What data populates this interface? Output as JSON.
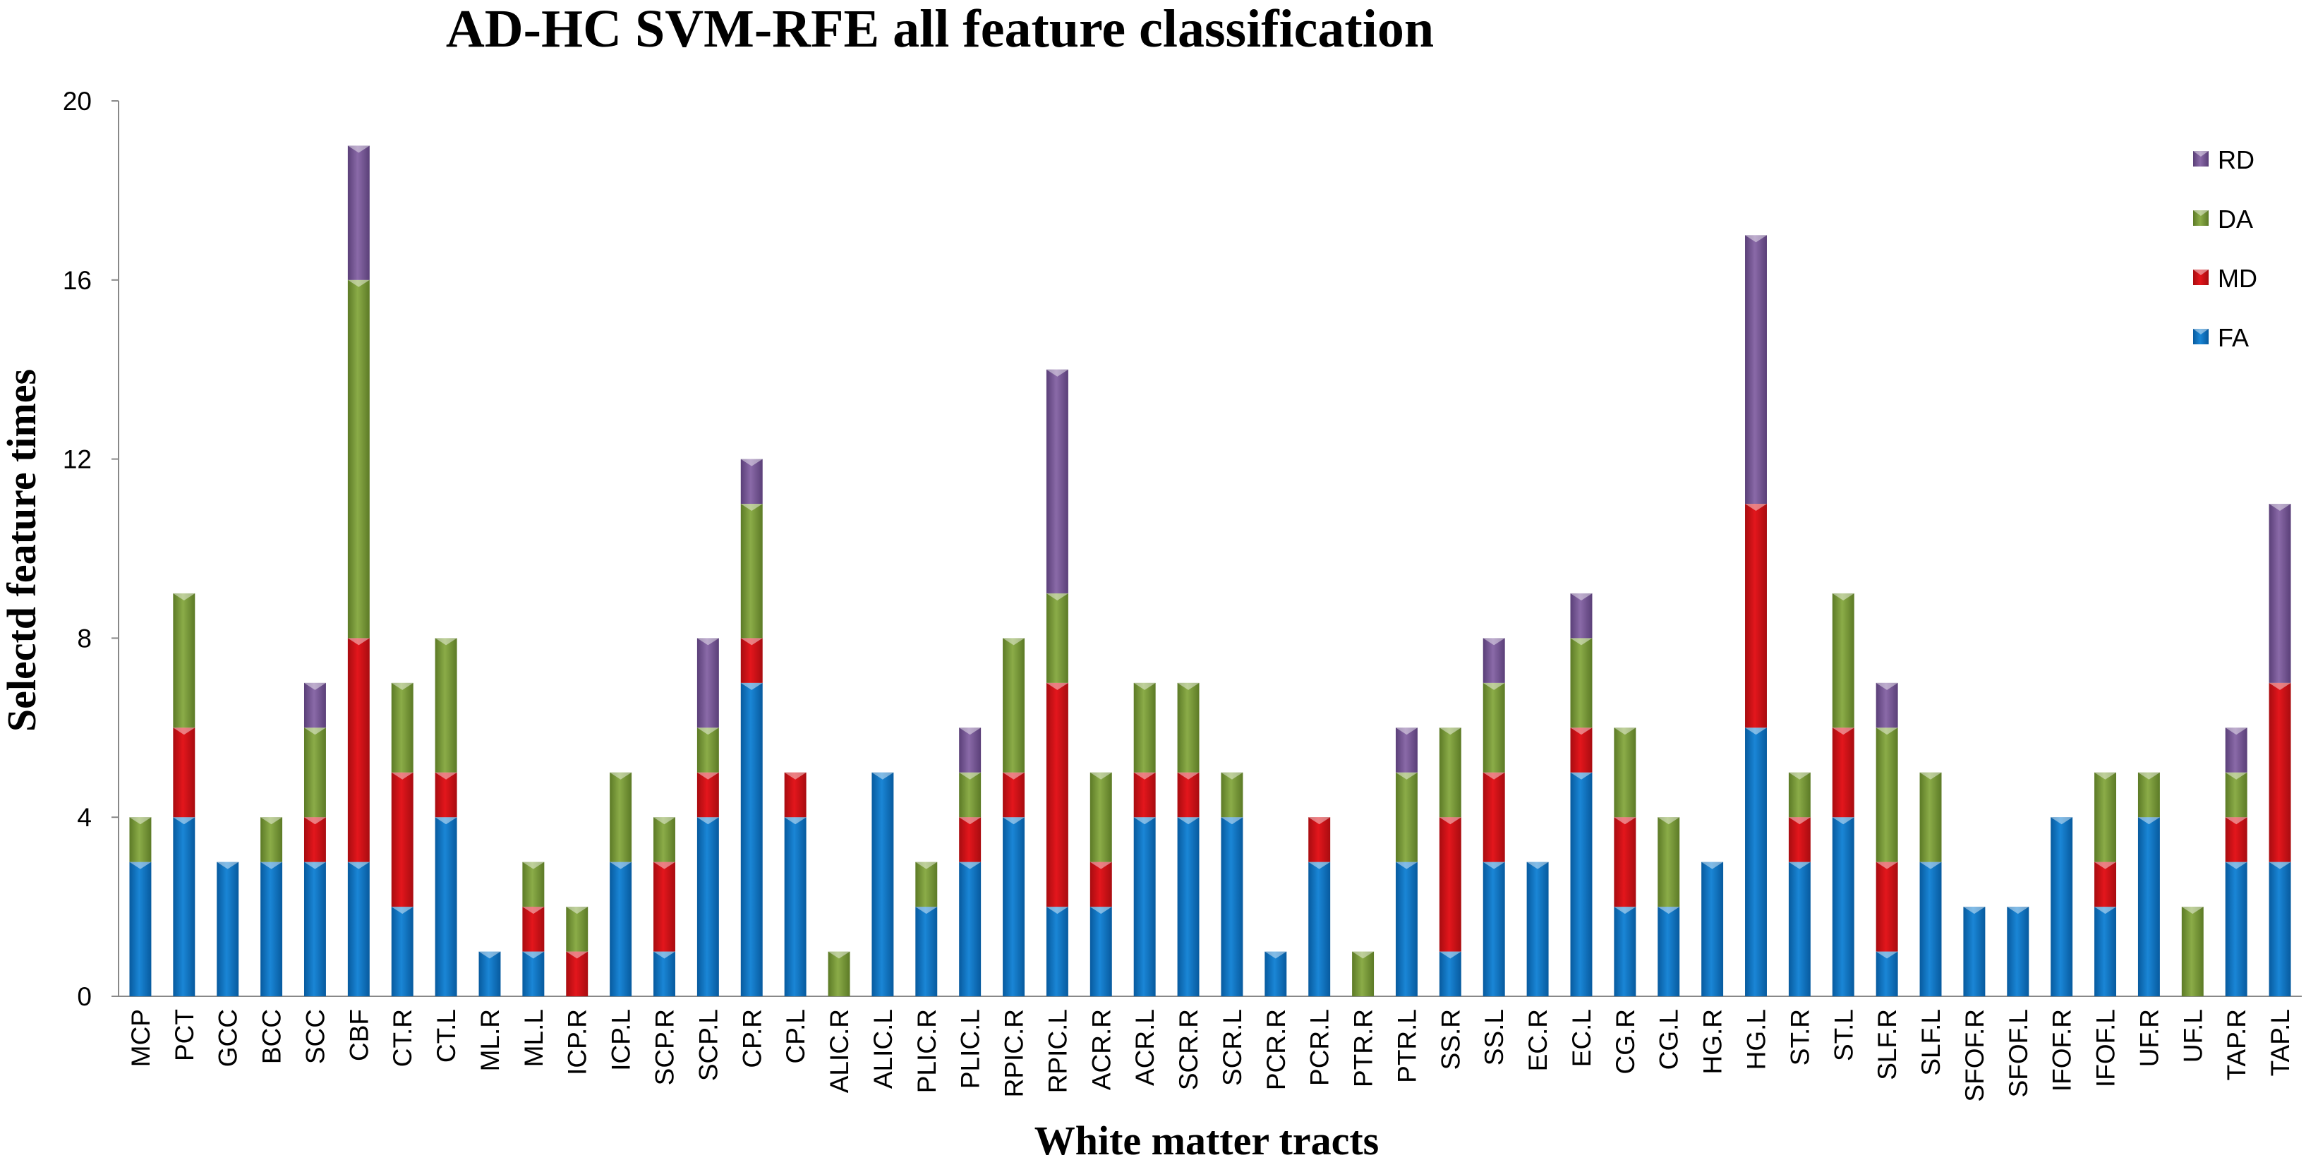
{
  "chart_data": {
    "type": "bar",
    "stacked": true,
    "title": "AD-HC SVM-RFE all feature classification",
    "xlabel": "White matter tracts",
    "ylabel": "Selectd feature times",
    "ylim": [
      0,
      20
    ],
    "yticks": [
      0,
      4,
      8,
      12,
      16,
      20
    ],
    "grid": false,
    "legend_position": "top-right",
    "categories": [
      "MCP",
      "PCT",
      "GCC",
      "BCC",
      "SCC",
      "CBF",
      "CT.R",
      "CT.L",
      "ML.R",
      "ML.L",
      "ICP.R",
      "ICP.L",
      "SCP.R",
      "SCP.L",
      "CP.R",
      "CP.L",
      "ALIC.R",
      "ALIC.L",
      "PLIC.R",
      "PLIC.L",
      "RPIC.R",
      "RPIC.L",
      "ACR.R",
      "ACR.L",
      "SCR.R",
      "SCR.L",
      "PCR.R",
      "PCR.L",
      "PTR.R",
      "PTR.L",
      "SS.R",
      "SS.L",
      "EC.R",
      "EC.L",
      "CG.R",
      "CG.L",
      "HG.R",
      "HG.L",
      "ST.R",
      "ST.L",
      "SLF.R",
      "SLF.L",
      "SFOF.R",
      "SFOF.L",
      "IFOF.R",
      "IFOF.L",
      "UF.R",
      "UF.L",
      "TAP.R",
      "TAP.L"
    ],
    "series": [
      {
        "name": "FA",
        "color": "#0b72c4",
        "values": [
          3,
          4,
          3,
          3,
          3,
          3,
          2,
          4,
          1,
          1,
          0,
          3,
          1,
          4,
          7,
          4,
          0,
          5,
          2,
          3,
          4,
          2,
          2,
          4,
          4,
          4,
          1,
          3,
          0,
          3,
          1,
          3,
          3,
          5,
          2,
          2,
          3,
          6,
          3,
          4,
          1,
          3,
          2,
          2,
          4,
          2,
          4,
          0,
          3,
          3
        ]
      },
      {
        "name": "MD",
        "color": "#d71016",
        "values": [
          0,
          2,
          0,
          0,
          1,
          5,
          3,
          1,
          0,
          1,
          1,
          0,
          2,
          1,
          1,
          1,
          0,
          0,
          0,
          1,
          1,
          5,
          1,
          1,
          1,
          0,
          0,
          1,
          0,
          0,
          3,
          2,
          0,
          1,
          2,
          0,
          0,
          5,
          1,
          2,
          2,
          0,
          0,
          0,
          0,
          1,
          0,
          0,
          1,
          4
        ]
      },
      {
        "name": "DA",
        "color": "#7a9a3a",
        "values": [
          1,
          3,
          0,
          1,
          2,
          8,
          2,
          3,
          0,
          1,
          1,
          2,
          1,
          1,
          3,
          0,
          1,
          0,
          1,
          1,
          3,
          2,
          2,
          2,
          2,
          1,
          0,
          0,
          1,
          2,
          2,
          2,
          0,
          2,
          2,
          2,
          0,
          0,
          1,
          3,
          3,
          2,
          0,
          0,
          0,
          2,
          1,
          2,
          1,
          0
        ]
      },
      {
        "name": "RD",
        "color": "#7a5a96",
        "values": [
          0,
          0,
          0,
          0,
          1,
          3,
          0,
          0,
          0,
          0,
          0,
          0,
          0,
          2,
          1,
          0,
          0,
          0,
          0,
          1,
          0,
          5,
          0,
          0,
          0,
          0,
          0,
          0,
          0,
          1,
          0,
          1,
          0,
          1,
          0,
          0,
          0,
          6,
          0,
          0,
          1,
          0,
          0,
          0,
          0,
          0,
          0,
          0,
          1,
          4
        ]
      }
    ]
  }
}
